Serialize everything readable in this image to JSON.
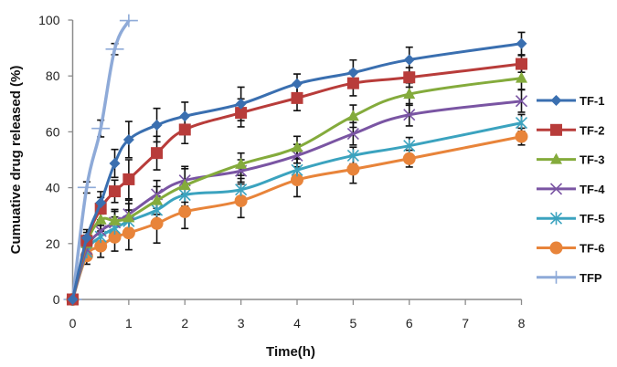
{
  "chart_data": {
    "type": "line",
    "title": "",
    "xlabel": "Time(h)",
    "ylabel": "Cumuative drug released (%)",
    "xlim": [
      0,
      8
    ],
    "ylim": [
      0,
      100
    ],
    "xticks": [
      0,
      1,
      2,
      3,
      4,
      5,
      6,
      7,
      8
    ],
    "yticks": [
      0,
      20,
      40,
      60,
      80,
      100
    ],
    "grid": false,
    "legend_position": "right",
    "error_bars": true,
    "series": [
      {
        "name": "TF-1",
        "color": "#3a6fb0",
        "marker": "diamond",
        "x": [
          0,
          0.25,
          0.5,
          0.75,
          1,
          1.5,
          2,
          3,
          4,
          5,
          6,
          8
        ],
        "y": [
          0,
          22,
          34.6,
          48.7,
          57.2,
          62.4,
          65.6,
          70,
          77.2,
          81.2,
          85.8,
          91.6
        ],
        "err": [
          0,
          3,
          4,
          5,
          6.5,
          6,
          5,
          6,
          3.5,
          4.5,
          4.5,
          4
        ]
      },
      {
        "name": "TF-2",
        "color": "#b83c3a",
        "marker": "square",
        "x": [
          0,
          0.25,
          0.5,
          0.75,
          1,
          1.5,
          2,
          3,
          4,
          5,
          6,
          8
        ],
        "y": [
          0,
          21,
          32.5,
          38.7,
          43,
          52.4,
          60.8,
          66.8,
          72.1,
          77.4,
          79.5,
          84.3
        ],
        "err": [
          0,
          3,
          4,
          4,
          7,
          6,
          5,
          5,
          4.5,
          4.5,
          3.5,
          3
        ]
      },
      {
        "name": "TF-3",
        "color": "#84ab3c",
        "marker": "triangle",
        "x": [
          0,
          0.25,
          0.5,
          0.75,
          1,
          1.5,
          2,
          3,
          4,
          5,
          6,
          8
        ],
        "y": [
          0,
          20,
          28.5,
          28.2,
          29.3,
          35.4,
          40.8,
          48.4,
          54.4,
          65.6,
          73.5,
          79.2
        ],
        "err": [
          0,
          3,
          4,
          4,
          5,
          5,
          6,
          4,
          4,
          4,
          4,
          4
        ]
      },
      {
        "name": "TF-4",
        "color": "#7a55a3",
        "marker": "x",
        "x": [
          0,
          0.25,
          0.5,
          0.75,
          1,
          1.5,
          2,
          3,
          4,
          5,
          6,
          8
        ],
        "y": [
          0,
          18,
          24.5,
          27.5,
          30.5,
          37.6,
          42.6,
          46,
          51.5,
          59.3,
          66.1,
          71
        ],
        "err": [
          0,
          3,
          4,
          4,
          5,
          5,
          5,
          4,
          4,
          4,
          4,
          4
        ]
      },
      {
        "name": "TF-5",
        "color": "#3ba3bf",
        "marker": "star",
        "x": [
          0,
          0.25,
          0.5,
          0.75,
          1,
          1.5,
          2,
          3,
          4,
          5,
          6,
          8
        ],
        "y": [
          0,
          17,
          22.5,
          25.5,
          28,
          32,
          37.4,
          39.3,
          46.3,
          51.5,
          55,
          63.2
        ],
        "err": [
          0,
          3,
          4,
          4,
          4,
          5,
          4,
          4,
          4,
          3,
          3,
          3
        ]
      },
      {
        "name": "TF-6",
        "color": "#e8843a",
        "marker": "circle",
        "x": [
          0,
          0.25,
          0.5,
          0.75,
          1,
          1.5,
          2,
          3,
          4,
          5,
          6,
          8
        ],
        "y": [
          0,
          15.6,
          19.1,
          22.3,
          23.8,
          27.2,
          31.4,
          35.3,
          42.8,
          46.6,
          50.4,
          58.3
        ],
        "err": [
          0,
          3,
          4,
          5,
          6,
          7,
          6,
          6,
          6,
          5,
          3,
          3
        ]
      },
      {
        "name": "TFP",
        "color": "#8eaad8",
        "marker": "plus",
        "x": [
          0,
          0.25,
          0.5,
          0.75,
          1
        ],
        "y": [
          0,
          40.1,
          61.2,
          89.6,
          99.8
        ],
        "err": [
          0,
          2,
          3,
          2,
          0
        ]
      }
    ]
  }
}
